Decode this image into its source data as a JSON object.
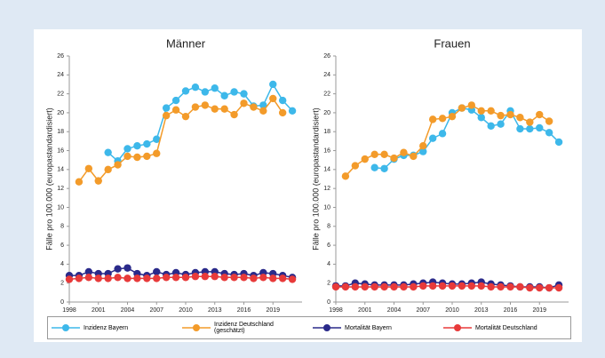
{
  "chart_data": [
    {
      "type": "line",
      "title": "Männer",
      "y_label": "Fälle pro 100.000 (europastandardisiert)",
      "x": [
        1998,
        1999,
        2000,
        2001,
        2002,
        2003,
        2004,
        2005,
        2006,
        2007,
        2008,
        2009,
        2010,
        2011,
        2012,
        2013,
        2014,
        2015,
        2016,
        2017,
        2018,
        2019,
        2020,
        2021
      ],
      "xlim": [
        1998,
        2022
      ],
      "xticks": [
        1998,
        2001,
        2004,
        2007,
        2010,
        2013,
        2016,
        2019
      ],
      "ylim": [
        0,
        26
      ],
      "yticks": [
        0,
        2,
        4,
        6,
        8,
        10,
        12,
        14,
        16,
        18,
        20,
        22,
        24,
        26
      ],
      "series": [
        {
          "name": "Inzidenz Bayern",
          "color": "#3db8ea",
          "values": [
            null,
            null,
            null,
            null,
            15.8,
            14.9,
            16.2,
            16.5,
            16.7,
            17.2,
            20.5,
            21.3,
            22.3,
            22.7,
            22.2,
            22.6,
            21.8,
            22.2,
            22.0,
            20.7,
            20.8,
            23.0,
            21.3,
            20.2
          ]
        },
        {
          "name": "Inzidenz Deutschland (geschätzt)",
          "color": "#f39b2a",
          "values": [
            null,
            12.7,
            14.1,
            12.8,
            14.0,
            14.5,
            15.4,
            15.3,
            15.4,
            15.7,
            19.7,
            20.3,
            19.6,
            20.6,
            20.8,
            20.4,
            20.4,
            19.8,
            21.0,
            20.6,
            20.2,
            21.5,
            20.0,
            null
          ]
        },
        {
          "name": "Mortalität Bayern",
          "color": "#2a2a8a",
          "values": [
            2.8,
            2.8,
            3.2,
            3.0,
            3.0,
            3.5,
            3.6,
            3.0,
            2.8,
            3.2,
            2.9,
            3.1,
            2.9,
            3.1,
            3.2,
            3.2,
            3.0,
            2.9,
            3.0,
            2.8,
            3.1,
            3.0,
            2.8,
            2.6
          ]
        },
        {
          "name": "Mortalität Deutschland",
          "color": "#e83a3a",
          "values": [
            2.4,
            2.5,
            2.6,
            2.5,
            2.5,
            2.6,
            2.5,
            2.5,
            2.5,
            2.5,
            2.6,
            2.6,
            2.6,
            2.7,
            2.7,
            2.7,
            2.6,
            2.6,
            2.6,
            2.5,
            2.6,
            2.5,
            2.5,
            2.4
          ]
        }
      ]
    },
    {
      "type": "line",
      "title": "Frauen",
      "y_label": "Fälle pro 100.000 (europastandardisiert)",
      "x": [
        1998,
        1999,
        2000,
        2001,
        2002,
        2003,
        2004,
        2005,
        2006,
        2007,
        2008,
        2009,
        2010,
        2011,
        2012,
        2013,
        2014,
        2015,
        2016,
        2017,
        2018,
        2019,
        2020,
        2021
      ],
      "xlim": [
        1998,
        2022
      ],
      "xticks": [
        1998,
        2001,
        2004,
        2007,
        2010,
        2013,
        2016,
        2019
      ],
      "ylim": [
        0,
        26
      ],
      "yticks": [
        0,
        2,
        4,
        6,
        8,
        10,
        12,
        14,
        16,
        18,
        20,
        22,
        24,
        26
      ],
      "series": [
        {
          "name": "Inzidenz Bayern",
          "color": "#3db8ea",
          "values": [
            null,
            null,
            null,
            null,
            14.2,
            14.1,
            15.1,
            15.5,
            15.5,
            15.9,
            17.3,
            17.8,
            20.0,
            20.5,
            20.3,
            19.5,
            18.6,
            18.8,
            20.2,
            18.3,
            18.3,
            18.4,
            17.9,
            16.9
          ]
        },
        {
          "name": "Inzidenz Deutschland (geschätzt)",
          "color": "#f39b2a",
          "values": [
            null,
            13.3,
            14.4,
            15.1,
            15.6,
            15.6,
            15.2,
            15.8,
            15.4,
            16.5,
            19.3,
            19.4,
            19.6,
            20.5,
            20.8,
            20.2,
            20.2,
            19.7,
            19.8,
            19.5,
            19.0,
            19.8,
            19.1,
            null
          ]
        },
        {
          "name": "Mortalität Bayern",
          "color": "#2a2a8a",
          "values": [
            1.7,
            1.7,
            2.0,
            1.9,
            1.8,
            1.8,
            1.8,
            1.8,
            1.9,
            2.0,
            2.1,
            2.0,
            1.9,
            1.9,
            2.0,
            2.1,
            1.9,
            1.8,
            1.7,
            1.6,
            1.6,
            1.6,
            1.5,
            1.8
          ]
        },
        {
          "name": "Mortalität Deutschland",
          "color": "#e83a3a",
          "values": [
            1.6,
            1.6,
            1.6,
            1.6,
            1.6,
            1.6,
            1.6,
            1.6,
            1.6,
            1.7,
            1.7,
            1.7,
            1.7,
            1.7,
            1.7,
            1.7,
            1.6,
            1.6,
            1.6,
            1.6,
            1.5,
            1.5,
            1.5,
            1.5
          ]
        }
      ]
    }
  ]
}
